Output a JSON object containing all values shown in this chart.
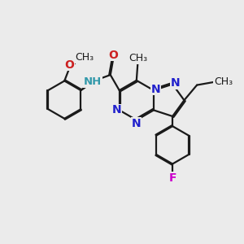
{
  "background_color": "#ebebeb",
  "bond_color": "#1a1a1a",
  "nitrogen_color": "#2020cc",
  "oxygen_color": "#cc2020",
  "fluorine_color": "#cc00cc",
  "nh_color": "#3399aa",
  "line_width": 1.6,
  "dbo": 0.055,
  "font_size": 10,
  "figsize": [
    3.0,
    3.0
  ],
  "dpi": 100,
  "xlim": [
    0,
    10
  ],
  "ylim": [
    0,
    10
  ]
}
